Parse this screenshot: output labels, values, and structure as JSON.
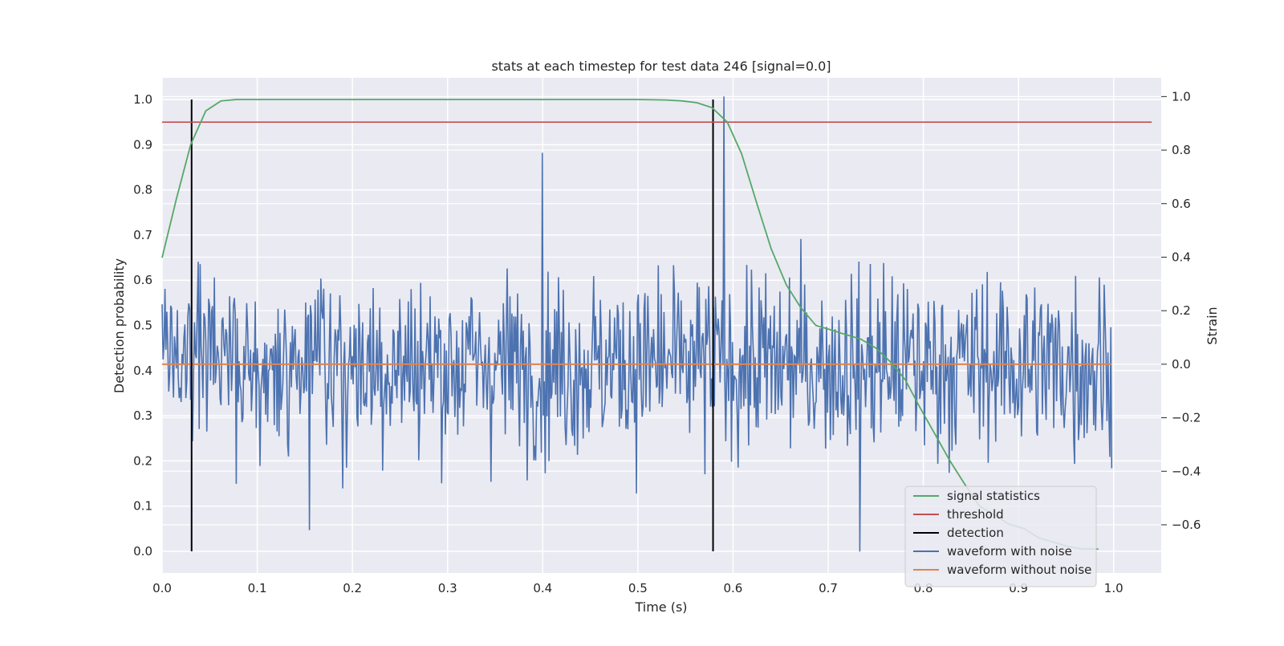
{
  "chart_data": {
    "type": "line",
    "title": "stats at each timestep for test data 246 [signal=0.0]",
    "xlabel": "Time (s)",
    "ylabel": "Detection probability",
    "ylabel_right": "Strain",
    "xlim": [
      0.0,
      1.05
    ],
    "ylim": [
      -0.048,
      1.048
    ],
    "ylim_right": [
      -0.78,
      1.07
    ],
    "x_ticks": [
      "0.0",
      "0.1",
      "0.2",
      "0.3",
      "0.4",
      "0.5",
      "0.6",
      "0.7",
      "0.8",
      "0.9",
      "1.0"
    ],
    "y_ticks": [
      "0.0",
      "0.1",
      "0.2",
      "0.3",
      "0.4",
      "0.5",
      "0.6",
      "0.7",
      "0.8",
      "0.9",
      "1.0"
    ],
    "y_ticks_right": [
      "−0.6",
      "−0.4",
      "−0.2",
      "0.0",
      "0.2",
      "0.4",
      "0.6",
      "0.8",
      "1.0"
    ],
    "grid": true,
    "legend_position": "lower-right",
    "series": [
      {
        "name": "signal statistics",
        "color": "#55a868",
        "axis": "left",
        "x": [
          0.0,
          0.015,
          0.03,
          0.046,
          0.062,
          0.078,
          0.1,
          0.2,
          0.3,
          0.4,
          0.5,
          0.53,
          0.546,
          0.562,
          0.578,
          0.594,
          0.609,
          0.625,
          0.64,
          0.656,
          0.671,
          0.687,
          0.703,
          0.718,
          0.734,
          0.75,
          0.765,
          0.781,
          0.796,
          0.812,
          0.828,
          0.843,
          0.859,
          0.875,
          0.89,
          0.906,
          0.921,
          0.937,
          0.953,
          0.968,
          0.984
        ],
        "y": [
          0.65,
          0.78,
          0.9,
          0.975,
          0.997,
          1.0,
          1.0,
          1.0,
          1.0,
          1.0,
          1.0,
          0.999,
          0.997,
          0.993,
          0.982,
          0.95,
          0.88,
          0.77,
          0.67,
          0.59,
          0.54,
          0.5,
          0.49,
          0.48,
          0.47,
          0.45,
          0.42,
          0.38,
          0.32,
          0.26,
          0.2,
          0.15,
          0.1,
          0.08,
          0.06,
          0.05,
          0.03,
          0.02,
          0.01,
          0.005,
          0.005
        ]
      },
      {
        "name": "threshold",
        "color": "#c44e52",
        "axis": "left",
        "x": [
          0.0,
          1.04
        ],
        "y": [
          0.95,
          0.95
        ]
      },
      {
        "name": "detection",
        "color": "#000000",
        "axis": "left",
        "segments": [
          {
            "x": 0.031,
            "y": [
              0.0,
              1.0
            ]
          },
          {
            "x": 0.579,
            "y": [
              0.0,
              1.0
            ]
          }
        ]
      },
      {
        "name": "waveform with noise",
        "color": "#4c72b0",
        "axis": "right",
        "x_range": [
          0.0,
          0.998
        ],
        "n_points": 1000,
        "strain_min": -0.7,
        "strain_max": 1.0,
        "strain_std": 0.2,
        "peaks": [
          {
            "x": 0.4,
            "y": 0.79
          },
          {
            "x": 0.59,
            "y": 1.0
          },
          {
            "x": 0.733,
            "y": -0.7
          },
          {
            "x": 0.155,
            "y": -0.62
          }
        ]
      },
      {
        "name": "waveform without noise",
        "color": "#dd8452",
        "axis": "right",
        "x": [
          0.0,
          0.998
        ],
        "y": [
          0.0,
          0.0
        ]
      }
    ]
  }
}
